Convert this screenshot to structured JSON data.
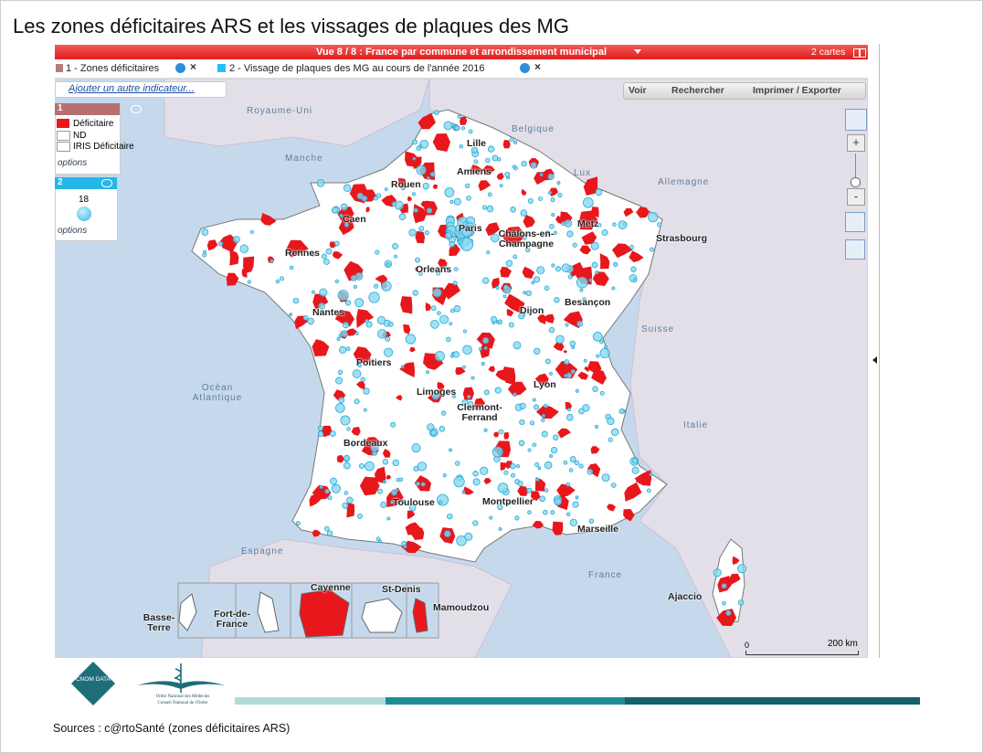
{
  "title": "Les zones déficitaires ARS et les vissages de plaques des MG",
  "map_header": {
    "view": "Vue 8 / 8 : France par commune et arrondissement municipal",
    "cards": "2 cartes"
  },
  "layers": [
    "1 - Zones déficitaires",
    "2 - Vissage de plaques des MG au cours de l'année 2016"
  ],
  "add_indicator": "Ajouter un autre indicateur...",
  "toolbar": [
    "Voir",
    "Rechercher",
    "Imprimer / Exporter"
  ],
  "legend_1": {
    "number": "1",
    "items": [
      "Déficitaire",
      "ND",
      "IRIS Déficitaire"
    ],
    "options": "options"
  },
  "legend_2": {
    "number": "2",
    "value": 18,
    "options": "options"
  },
  "map_labels": {
    "regions": [
      "Royaume-Uni",
      "Manche",
      "Belgique",
      "Lux",
      "Allemagne",
      "Suisse",
      "Océan Atlantique",
      "Italie",
      "Espagne",
      "France"
    ],
    "cities": [
      "Lille",
      "Amiens",
      "Rouen",
      "Caen",
      "Paris",
      "Châlons-en-Champagne",
      "Metz",
      "Strasbourg",
      "Rennes",
      "Orleans",
      "Nantes",
      "Dijon",
      "Besançon",
      "Poitiers",
      "Limoges",
      "Lyon",
      "Clermont-Ferrand",
      "Bordeaux",
      "Toulouse",
      "Montpellier",
      "Marseille",
      "Ajaccio"
    ],
    "overseas": [
      "Basse-Terre",
      "Fort-de-France",
      "Cayenne",
      "St-Denis",
      "Mamoudzou"
    ]
  },
  "scale": {
    "start": 0,
    "end": "200 km"
  },
  "footer": {
    "logo": "CNOM DATA",
    "org": "Ordre National des Médecins",
    "council": "Conseil National de l'Ordre",
    "sources": "Sources : c@rtoSanté (zones déficitaires ARS)"
  }
}
